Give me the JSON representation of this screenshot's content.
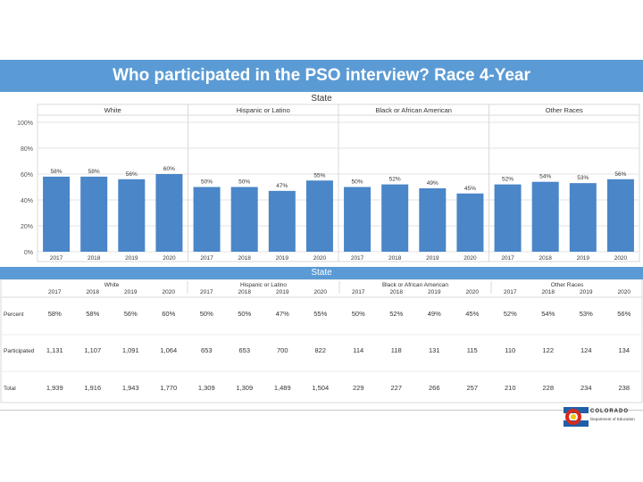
{
  "title": "Who participated in the PSO interview? Race 4-Year",
  "chart_panel_title": "State",
  "table_panel_title": "State",
  "logo": {
    "word": "COLORADO",
    "line1": "Department of Education",
    "line2": ""
  },
  "colors": {
    "header": "#5b9bd5",
    "bar": "#4a86c8",
    "grid": "#e3e3e3"
  },
  "chart_data": {
    "type": "bar",
    "title": "State",
    "ylim": [
      0,
      100
    ],
    "yticks": [
      "0%",
      "20%",
      "40%",
      "60%",
      "80%",
      "100%"
    ],
    "grid": true,
    "groups": [
      {
        "name": "White",
        "years": [
          "2017",
          "2018",
          "2019",
          "2020"
        ],
        "values": [
          58,
          58,
          56,
          60
        ],
        "labels": [
          "58%",
          "58%",
          "56%",
          "60%"
        ]
      },
      {
        "name": "Hispanic or Latino",
        "years": [
          "2017",
          "2018",
          "2019",
          "2020"
        ],
        "values": [
          50,
          50,
          47,
          55
        ],
        "labels": [
          "50%",
          "50%",
          "47%",
          "55%"
        ]
      },
      {
        "name": "Black or African American",
        "years": [
          "2017",
          "2018",
          "2019",
          "2020"
        ],
        "values": [
          50,
          52,
          49,
          45
        ],
        "labels": [
          "50%",
          "52%",
          "49%",
          "45%"
        ]
      },
      {
        "name": "Other Races",
        "years": [
          "2017",
          "2018",
          "2019",
          "2020"
        ],
        "values": [
          52,
          54,
          53,
          56
        ],
        "labels": [
          "52%",
          "54%",
          "53%",
          "56%"
        ]
      }
    ]
  },
  "table": {
    "groups": [
      "White",
      "Hispanic or Latino",
      "Black or African American",
      "Other Races"
    ],
    "years": [
      "2017",
      "2018",
      "2019",
      "2020",
      "2017",
      "2018",
      "2019",
      "2020",
      "2017",
      "2018",
      "2019",
      "2020",
      "2017",
      "2018",
      "2019",
      "2020"
    ],
    "rows": [
      {
        "label": "Percent",
        "cells": [
          "58%",
          "58%",
          "56%",
          "60%",
          "50%",
          "50%",
          "47%",
          "55%",
          "50%",
          "52%",
          "49%",
          "45%",
          "52%",
          "54%",
          "53%",
          "56%"
        ]
      },
      {
        "label": "Participated",
        "cells": [
          "1,131",
          "1,107",
          "1,091",
          "1,064",
          "653",
          "653",
          "700",
          "822",
          "114",
          "118",
          "131",
          "115",
          "110",
          "122",
          "124",
          "134"
        ]
      },
      {
        "label": "Total",
        "cells": [
          "1,939",
          "1,916",
          "1,943",
          "1,770",
          "1,309",
          "1,309",
          "1,489",
          "1,504",
          "229",
          "227",
          "266",
          "257",
          "210",
          "228",
          "234",
          "238"
        ]
      }
    ]
  }
}
